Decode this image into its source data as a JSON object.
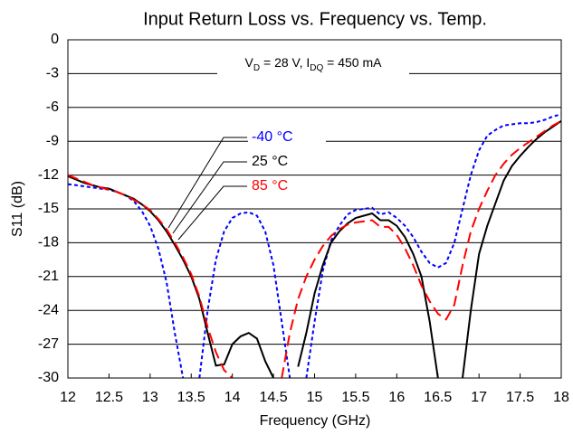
{
  "chart_data": {
    "type": "line",
    "title": "Input Return Loss vs. Frequency vs. Temp.",
    "xlabel": "Frequency (GHz)",
    "ylabel": "S11 (dB)",
    "annotation": [
      {
        "text": "V"
      },
      {
        "sub": "D"
      },
      {
        "text": " = 28 V, I"
      },
      {
        "sub": "DQ"
      },
      {
        "text": " = 450 mA"
      }
    ],
    "x": [
      12.0,
      12.1,
      12.2,
      12.3,
      12.4,
      12.5,
      12.6,
      12.7,
      12.8,
      12.9,
      13.0,
      13.1,
      13.2,
      13.3,
      13.4,
      13.5,
      13.6,
      13.7,
      13.8,
      13.9,
      14.0,
      14.1,
      14.2,
      14.3,
      14.4,
      14.5,
      14.6,
      14.7,
      14.8,
      14.9,
      15.0,
      15.1,
      15.2,
      15.3,
      15.4,
      15.5,
      15.6,
      15.7,
      15.8,
      15.9,
      16.0,
      16.1,
      16.2,
      16.3,
      16.4,
      16.5,
      16.6,
      16.7,
      16.8,
      16.9,
      17.0,
      17.1,
      17.2,
      17.3,
      17.4,
      17.5,
      17.6,
      17.7,
      17.8,
      17.9,
      18.0
    ],
    "series": [
      {
        "name": "-40 °C",
        "color": "#0000ff",
        "dash": "dotted",
        "values": [
          -12.8,
          -12.9,
          -13.0,
          -13.1,
          -13.2,
          -13.3,
          -13.5,
          -13.8,
          -14.3,
          -15.2,
          -16.5,
          -18.5,
          -21.5,
          -26,
          -30,
          null,
          -30,
          -24,
          -19.5,
          -17,
          -15.8,
          -15.4,
          -15.3,
          -15.6,
          -17,
          -20,
          -25,
          -30,
          null,
          -30,
          -25,
          -20.5,
          -17.8,
          -16.5,
          -15.5,
          -15.1,
          -15.0,
          -14.9,
          -15.5,
          -15.3,
          -15.8,
          -16.5,
          -17.5,
          -18.8,
          -19.8,
          -20.2,
          -19.8,
          -18,
          -15,
          -12,
          -9.8,
          -8.5,
          -8,
          -7.6,
          -7.5,
          -7.4,
          -7.4,
          -7.3,
          -7.1,
          -6.8,
          -6.6
        ]
      },
      {
        "name": "25 °C",
        "color": "#000000",
        "dash": "solid",
        "values": [
          -12.1,
          -12.4,
          -12.7,
          -12.9,
          -13.1,
          -13.2,
          -13.5,
          -13.8,
          -14.1,
          -14.6,
          -15.2,
          -16,
          -17,
          -18.2,
          -19.5,
          -21,
          -23,
          -26,
          -28.9,
          -28.8,
          -27,
          -26.3,
          -26,
          -26.5,
          -28.5,
          -30,
          null,
          null,
          -29,
          -26,
          -22.5,
          -20,
          -18,
          -17,
          -16.3,
          -15.8,
          -15.6,
          -15.4,
          -16,
          -16,
          -16.5,
          -17.5,
          -19,
          -21,
          -25,
          -30,
          null,
          null,
          -30,
          -24,
          -19,
          -16.5,
          -14.5,
          -12.5,
          -11.2,
          -10.3,
          -9.5,
          -8.8,
          -8.2,
          -7.7,
          -7.2
        ]
      },
      {
        "name": "85 °C",
        "color": "#ff0000",
        "dash": "dashed",
        "values": [
          -12,
          -12.3,
          -12.6,
          -12.9,
          -13.1,
          -13.3,
          -13.5,
          -13.8,
          -14.2,
          -14.6,
          -15.1,
          -15.9,
          -16.8,
          -18,
          -19.3,
          -20.8,
          -22.8,
          -25.5,
          -27.7,
          -29.3,
          -30,
          null,
          null,
          null,
          null,
          null,
          -30,
          -26,
          -23,
          -21,
          -19.5,
          -18.3,
          -17.4,
          -16.8,
          -16.4,
          -16.2,
          -16.1,
          -16,
          -16.6,
          -16.6,
          -17.3,
          -18.5,
          -20,
          -21.8,
          -23.2,
          -24.3,
          -24.8,
          -23.5,
          -20,
          -17,
          -15,
          -13.4,
          -12,
          -11,
          -10.2,
          -9.6,
          -9.1,
          -8.6,
          -8.1,
          -7.6,
          -7.2
        ]
      }
    ],
    "xlim": [
      12,
      18
    ],
    "xticks": [
      12,
      12.5,
      13,
      13.5,
      14,
      14.5,
      15,
      15.5,
      16,
      16.5,
      17,
      17.5,
      18
    ],
    "ylim": [
      -30,
      0
    ],
    "yticks": [
      0,
      -3,
      -6,
      -9,
      -12,
      -15,
      -18,
      -21,
      -24,
      -27,
      -30
    ],
    "grid": true
  }
}
